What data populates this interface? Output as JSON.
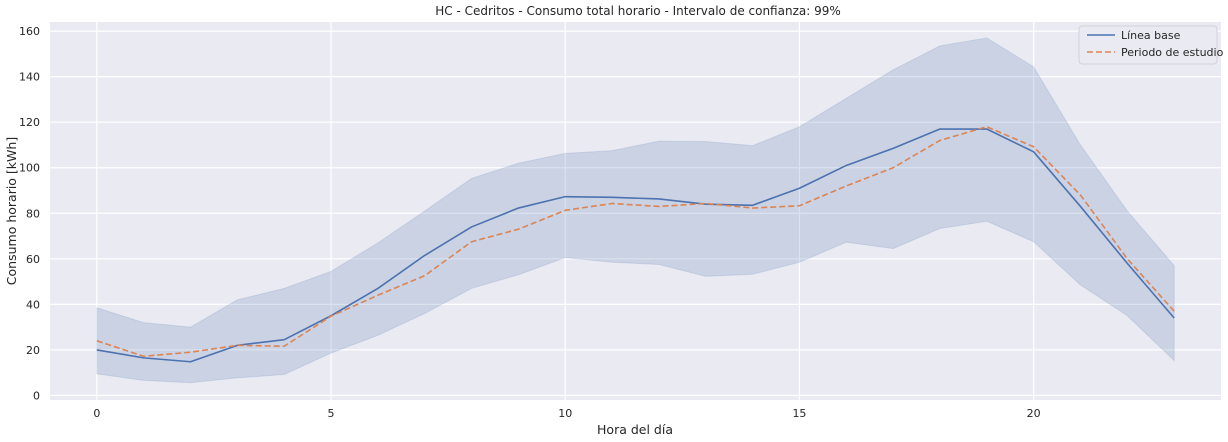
{
  "chart_data": {
    "type": "line",
    "title": "HC - Cedritos - Consumo total horario - Intervalo de confianza: 99%",
    "xlabel": "Hora del día",
    "ylabel": "Consumo horario [kWh]",
    "xlim": [
      -1,
      24
    ],
    "ylim": [
      -2,
      164
    ],
    "x_ticks": [
      0,
      5,
      10,
      15,
      20
    ],
    "y_ticks": [
      0,
      20,
      40,
      60,
      80,
      100,
      120,
      140,
      160
    ],
    "grid": true,
    "legend_position": "top-right",
    "x": [
      0,
      1,
      2,
      3,
      4,
      5,
      6,
      7,
      8,
      9,
      10,
      11,
      12,
      13,
      14,
      15,
      16,
      17,
      18,
      19,
      20,
      21,
      22,
      23
    ],
    "series": [
      {
        "name": "Línea base",
        "style": "solid",
        "color": "#4c72b0",
        "values": [
          20,
          16.5,
          14.8,
          22,
          24.5,
          35,
          47,
          61.5,
          74,
          82.3,
          87.3,
          87,
          86.3,
          84,
          83.5,
          91,
          101,
          108.5,
          117,
          117,
          107,
          83,
          58,
          34
        ]
      },
      {
        "name": "Periodo de estudio",
        "style": "dashed",
        "color": "#dd8452",
        "values": [
          24,
          17.2,
          19,
          22,
          21.6,
          34.8,
          44,
          52.6,
          67.5,
          73,
          81.3,
          84.3,
          83,
          84.3,
          82.3,
          83.3,
          92,
          100,
          112,
          118,
          109.2,
          88,
          60,
          37
        ]
      }
    ],
    "confidence_band": {
      "series": "Línea base",
      "color": "#4c72b0",
      "upper": [
        38.5,
        32,
        30,
        42,
        47,
        54.5,
        67,
        81,
        95.3,
        102,
        106.3,
        107.5,
        111.7,
        111.5,
        109.7,
        118,
        130.5,
        143,
        153.5,
        157,
        144.3,
        110,
        81,
        57
      ],
      "lower": [
        9.5,
        6.6,
        5.6,
        7.7,
        9.2,
        18.6,
        26.4,
        36,
        47,
        53,
        60.5,
        58.5,
        57.5,
        52.3,
        53.2,
        58.5,
        67.3,
        64.5,
        73.3,
        76.5,
        67.5,
        48.5,
        35,
        15.3
      ]
    }
  }
}
